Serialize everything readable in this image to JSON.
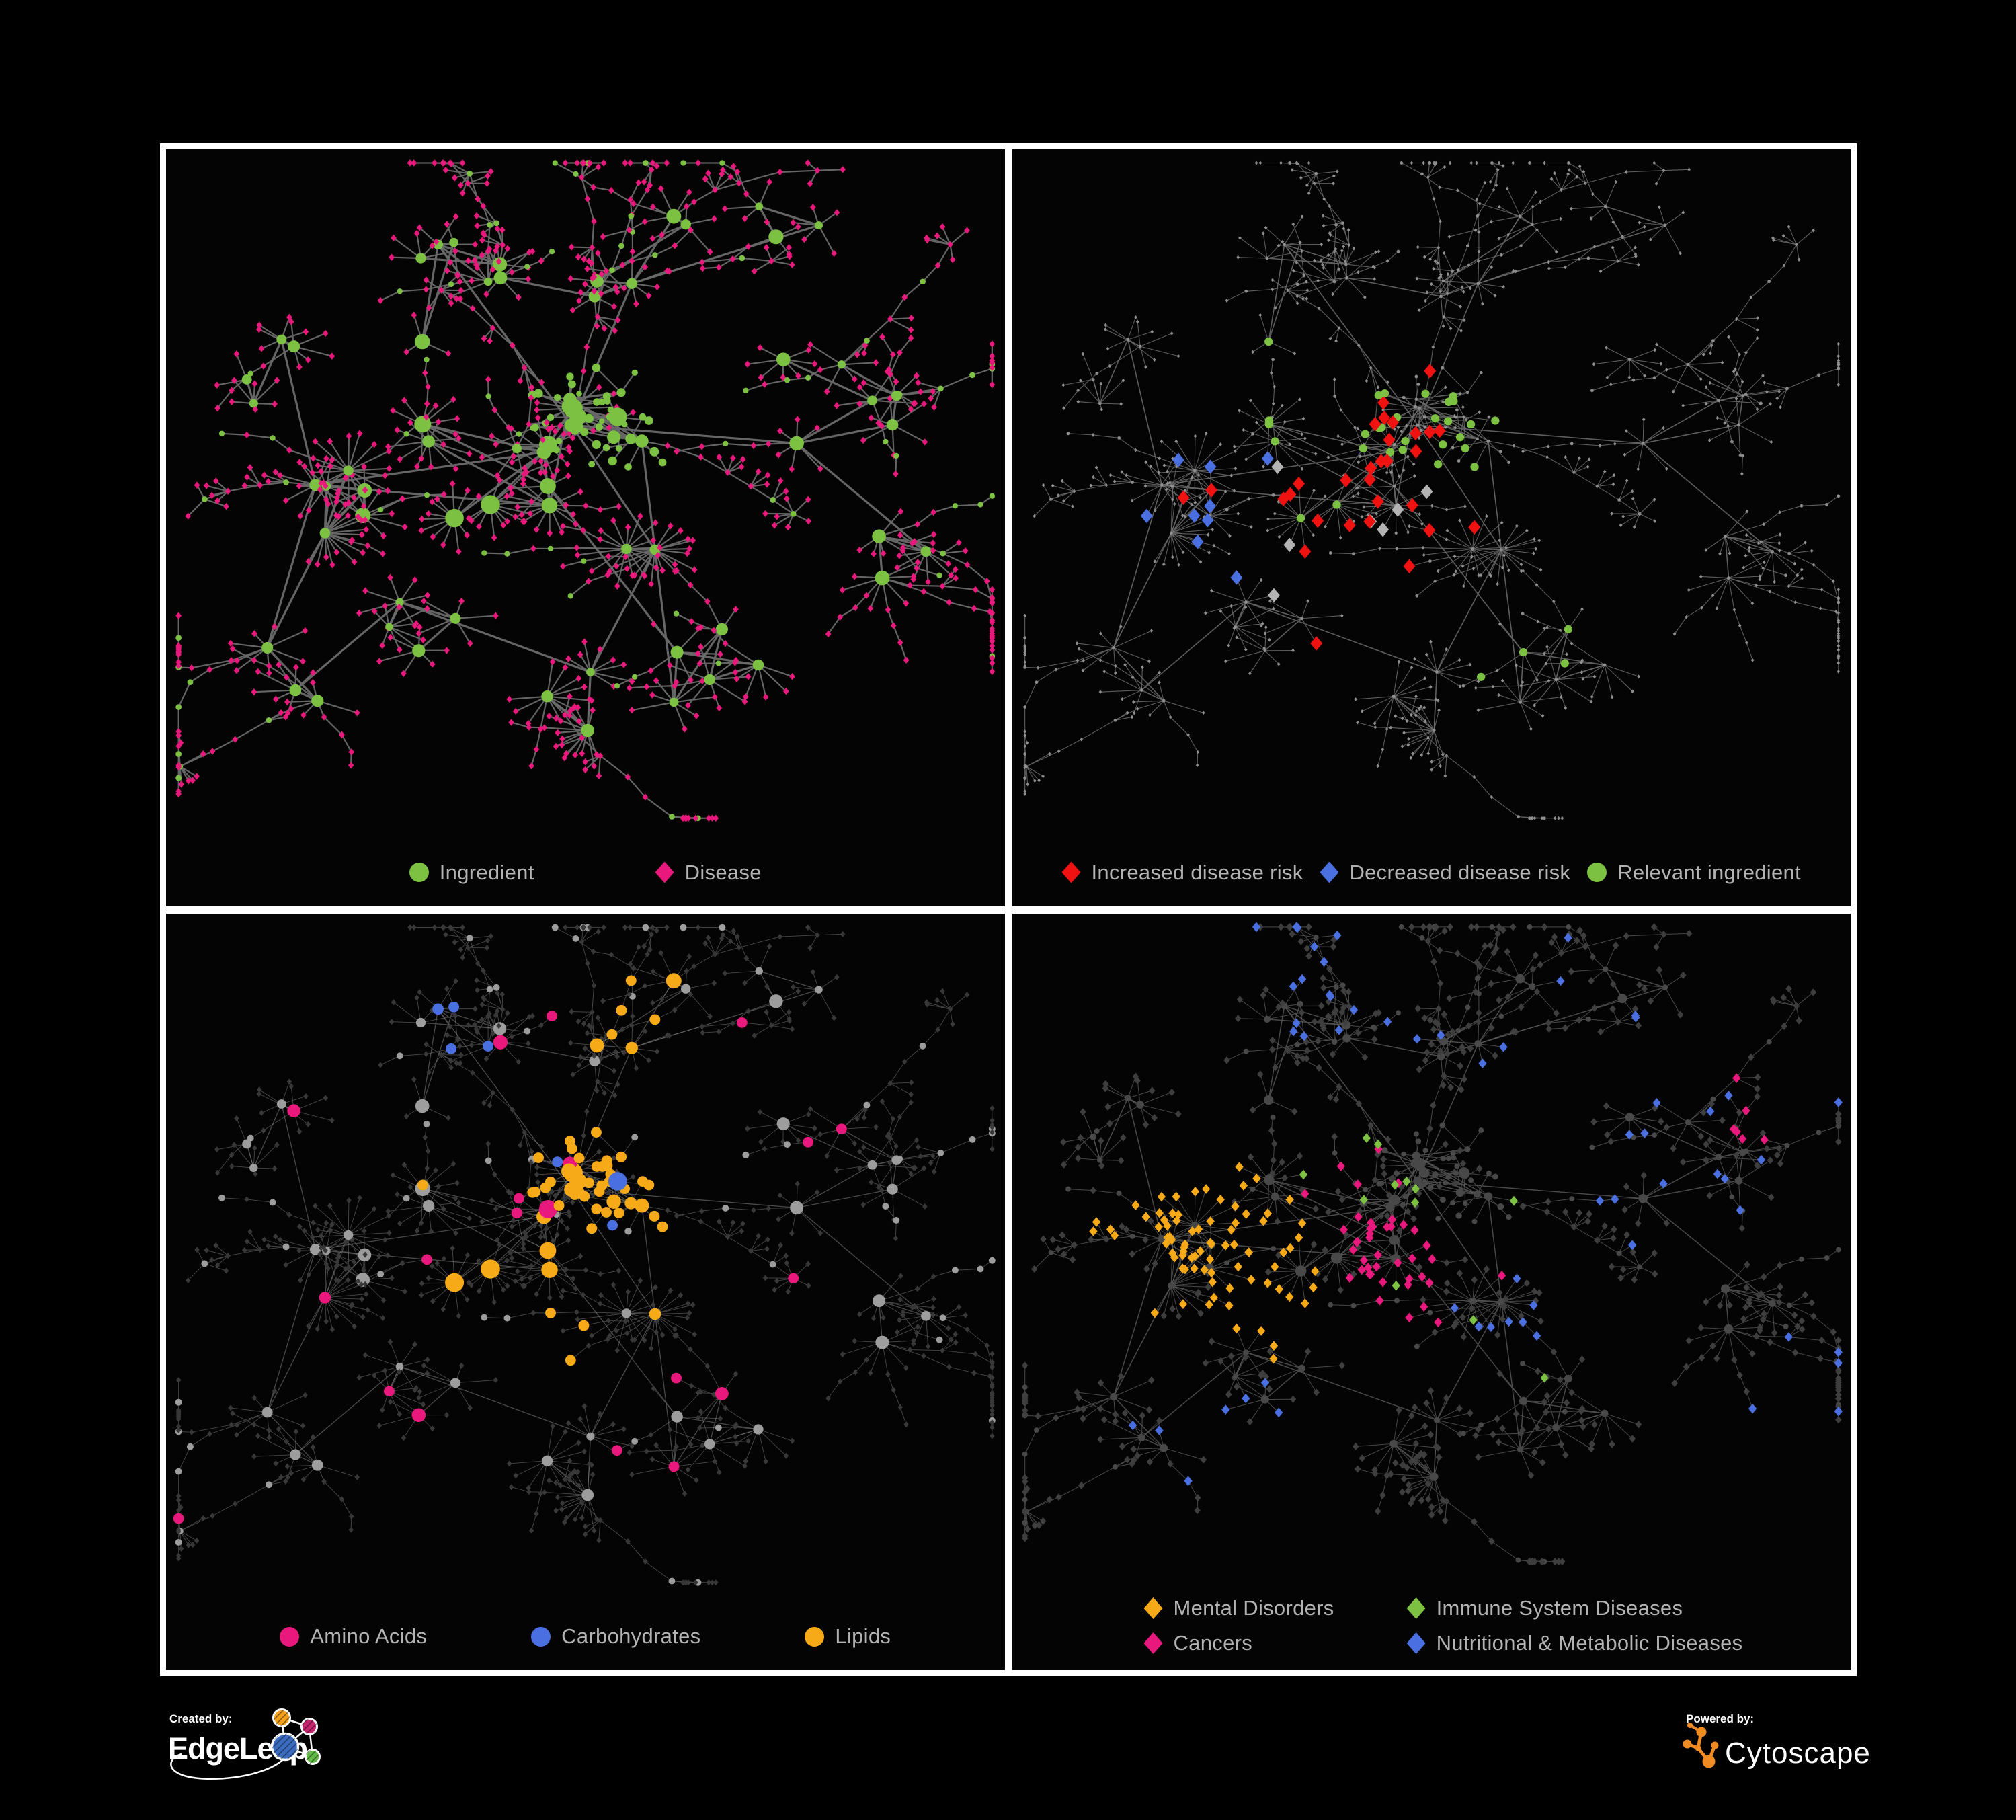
{
  "panels": [
    {
      "name": "ingredient-disease-network",
      "legend": [
        {
          "label": "Ingredient",
          "shape": "circle",
          "color": "#7cc142"
        },
        {
          "label": "Disease",
          "shape": "diamond",
          "color": "#e9187c"
        }
      ]
    },
    {
      "name": "disease-risk-network",
      "legend": [
        {
          "label": "Increased disease risk",
          "shape": "diamond",
          "color": "#f01111"
        },
        {
          "label": "Decreased disease risk",
          "shape": "diamond",
          "color": "#4a6fe0"
        },
        {
          "label": "Relevant ingredient",
          "shape": "circle",
          "color": "#7cc142"
        }
      ]
    },
    {
      "name": "nutrient-category-network",
      "legend": [
        {
          "label": "Amino Acids",
          "shape": "circle",
          "color": "#e9187c"
        },
        {
          "label": "Carbohydrates",
          "shape": "circle",
          "color": "#4a6fe0"
        },
        {
          "label": "Lipids",
          "shape": "circle",
          "color": "#f7aa18"
        }
      ]
    },
    {
      "name": "disease-category-network",
      "legend": [
        {
          "label": "Mental Disorders",
          "shape": "diamond",
          "color": "#f7aa18"
        },
        {
          "label": "Immune System Diseases",
          "shape": "diamond",
          "color": "#7cc142"
        },
        {
          "label": "Cancers",
          "shape": "diamond",
          "color": "#e9187c"
        },
        {
          "label": "Nutritional & Metabolic Diseases",
          "shape": "diamond",
          "color": "#4a6fe0"
        }
      ]
    }
  ],
  "footer": {
    "created_by": "Created by:",
    "created_brand": "EdgeLeap",
    "powered_by": "Powered by:",
    "powered_brand": "Cytoscape"
  },
  "chart_data": {
    "type": "network",
    "description": "Same ingredient-disease association network rendered four times with different color codings: (1) node type, (2) disease risk direction, (3) ingredient nutrient category, (4) disease category.",
    "background": "#040404",
    "node_shapes": {
      "ingredient": "circle",
      "disease": "diamond"
    },
    "generator": {
      "seed": 20,
      "chains": 18,
      "crossEdges": 34,
      "clusters": [
        {
          "x": 0.4,
          "y": 0.46,
          "r": 0.1,
          "hubs": 10,
          "leafMin": 5,
          "leafMax": 16,
          "dense": true
        },
        {
          "x": 0.24,
          "y": 0.5,
          "r": 0.065,
          "hubs": 6,
          "leafMin": 6,
          "leafMax": 18,
          "dense": true
        },
        {
          "x": 0.53,
          "y": 0.385,
          "r": 0.055,
          "hubs": 9,
          "leafMin": 2,
          "leafMax": 5,
          "circleLeaves": true,
          "dense": true
        },
        {
          "x": 0.57,
          "y": 0.6,
          "r": 0.035,
          "hubs": 2,
          "leafMin": 12,
          "leafMax": 20
        },
        {
          "x": 0.47,
          "y": 0.8,
          "r": 0.05,
          "hubs": 3,
          "leafMin": 8,
          "leafMax": 16
        },
        {
          "x": 0.3,
          "y": 0.7,
          "r": 0.06,
          "hubs": 4,
          "leafMin": 5,
          "leafMax": 10
        },
        {
          "x": 0.67,
          "y": 0.75,
          "r": 0.07,
          "hubs": 5,
          "leafMin": 4,
          "leafMax": 9
        },
        {
          "x": 0.8,
          "y": 0.37,
          "r": 0.08,
          "hubs": 6,
          "leafMin": 4,
          "leafMax": 8
        },
        {
          "x": 0.35,
          "y": 0.2,
          "r": 0.09,
          "hubs": 7,
          "leafMin": 3,
          "leafMax": 7
        },
        {
          "x": 0.58,
          "y": 0.16,
          "r": 0.07,
          "hubs": 5,
          "leafMin": 3,
          "leafMax": 6
        },
        {
          "x": 0.15,
          "y": 0.32,
          "r": 0.06,
          "hubs": 4,
          "leafMin": 3,
          "leafMax": 6
        },
        {
          "x": 0.17,
          "y": 0.76,
          "r": 0.05,
          "hubs": 3,
          "leafMin": 4,
          "leafMax": 8
        },
        {
          "x": 0.88,
          "y": 0.58,
          "r": 0.05,
          "hubs": 3,
          "leafMin": 5,
          "leafMax": 10
        },
        {
          "x": 0.73,
          "y": 0.12,
          "r": 0.05,
          "hubs": 3,
          "leafMin": 3,
          "leafMax": 6
        }
      ]
    },
    "styles": [
      {
        "edge": {
          "color": "#6a6a6a",
          "opacity": 0.95,
          "width": 2.2,
          "thick": 3.2
        },
        "circle": {
          "fill": "#7cc142",
          "mul": 1.15,
          "add": 0,
          "min": 4.2
        },
        "diamond": {
          "fill": "#e9187c",
          "r": 4.6
        },
        "hl": {}
      },
      {
        "edge": {
          "color": "#6e6e6e",
          "opacity": 0.85,
          "width": 1.1,
          "thick": 1.6
        },
        "circle": {
          "fill": "#8e8e8e",
          "mul": 0,
          "add": 2.4,
          "min": 2.4
        },
        "diamond": {
          "fill": "#8e8e8e",
          "r": 2.5
        },
        "hl": {
          "circleR": 6.2,
          "diamondR": 9.5
        }
      },
      {
        "edge": {
          "color": "#8f8f8f",
          "opacity": 0.5,
          "width": 0.9,
          "thick": 1.3
        },
        "circle": {
          "fill": "#9d9d9d",
          "mul": 1.0,
          "add": 0.5,
          "min": 5
        },
        "diamond": {
          "fill": "#383838",
          "r": 4.0
        },
        "hl": {
          "circleMul": 1.0,
          "circleAdd": 2,
          "circleMin": 8
        }
      },
      {
        "edge": {
          "color": "#5d5d5d",
          "opacity": 0.8,
          "width": 1.0,
          "thick": 1.5
        },
        "circle": {
          "fill": "#484848",
          "mul": 0.62,
          "add": 1,
          "min": 4
        },
        "diamond": {
          "fill": "#3e3e3e",
          "r": 5.0
        },
        "hl": {
          "diamondR": 6.5
        }
      }
    ],
    "highlights": [
      [],
      [
        {
          "shape": "diamond",
          "color": "#f01111",
          "count": 30,
          "regions": [
            {
              "x": 0.42,
              "y": 0.5,
              "s": 0.13
            },
            {
              "x": 0.8,
              "y": 0.72,
              "s": 0.05
            }
          ]
        },
        {
          "shape": "diamond",
          "color": "#4a6fe0",
          "count": 9,
          "regions": [
            {
              "x": 0.26,
              "y": 0.5,
              "s": 0.06
            },
            {
              "x": 0.85,
              "y": 0.3,
              "s": 0.025
            }
          ]
        },
        {
          "shape": "diamond",
          "color": "#b3b3b3",
          "count": 7,
          "regions": [
            {
              "x": 0.38,
              "y": 0.54,
              "s": 0.16
            }
          ]
        },
        {
          "shape": "circle",
          "color": "#7cc142",
          "count": 34,
          "regions": [
            {
              "x": 0.42,
              "y": 0.47,
              "s": 0.13
            },
            {
              "x": 0.6,
              "y": 0.7,
              "s": 0.07
            }
          ]
        }
      ],
      [
        {
          "shape": "circle",
          "color": "#f7aa18",
          "count": 56,
          "regions": [
            {
              "x": 0.53,
              "y": 0.39,
              "s": 0.06
            },
            {
              "x": 0.43,
              "y": 0.5,
              "s": 0.1
            },
            {
              "x": 0.62,
              "y": 0.62,
              "s": 0.05
            },
            {
              "x": 0.55,
              "y": 0.2,
              "s": 0.09
            }
          ]
        },
        {
          "shape": "circle",
          "color": "#4a6fe0",
          "count": 13,
          "regions": [
            {
              "x": 0.53,
              "y": 0.4,
              "s": 0.05
            },
            {
              "x": 0.32,
              "y": 0.14,
              "s": 0.08
            }
          ]
        },
        {
          "shape": "circle",
          "color": "#e9187c",
          "count": 20,
          "regions": [
            {
              "x": 0.5,
              "y": 0.52,
              "s": 0.42
            }
          ]
        }
      ],
      [
        {
          "shape": "diamond",
          "color": "#f7aa18",
          "count": 80,
          "regions": [
            {
              "x": 0.23,
              "y": 0.47,
              "s": 0.08
            },
            {
              "x": 0.33,
              "y": 0.6,
              "s": 0.05
            }
          ]
        },
        {
          "shape": "diamond",
          "color": "#e9187c",
          "count": 48,
          "regions": [
            {
              "x": 0.46,
              "y": 0.53,
              "s": 0.09
            },
            {
              "x": 0.88,
              "y": 0.3,
              "s": 0.035
            }
          ]
        },
        {
          "shape": "diamond",
          "color": "#4a6fe0",
          "count": 58,
          "regions": [
            {
              "x": 0.58,
              "y": 0.6,
              "s": 0.06
            },
            {
              "x": 0.75,
              "y": 0.3,
              "s": 0.16
            },
            {
              "x": 0.35,
              "y": 0.1,
              "s": 0.09
            },
            {
              "x": 0.25,
              "y": 0.82,
              "s": 0.1
            },
            {
              "x": 0.9,
              "y": 0.75,
              "s": 0.08
            }
          ]
        },
        {
          "shape": "diamond",
          "color": "#7cc142",
          "count": 12,
          "regions": [
            {
              "x": 0.47,
              "y": 0.47,
              "s": 0.14
            }
          ]
        }
      ]
    ],
    "legend_text_color": "#b3b3b3",
    "frame_color": "#ffffff",
    "brand_colors": {
      "edgeleap_orange": "#f3a11c",
      "edgeleap_magenta": "#c4256e",
      "edgeleap_blue": "#3b6bbf",
      "edgeleap_green": "#62bb46",
      "cytoscape_orange": "#ef8b22"
    }
  }
}
